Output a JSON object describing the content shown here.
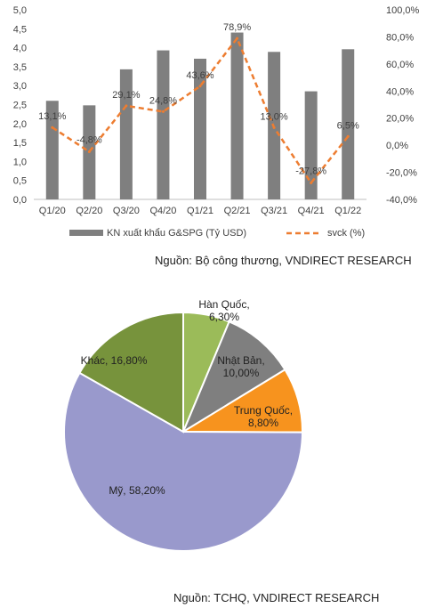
{
  "chart_data": [
    {
      "type": "bar",
      "categories": [
        "Q1/20",
        "Q2/20",
        "Q3/20",
        "Q4/20",
        "Q1/21",
        "Q2/21",
        "Q3/21",
        "Q4/21",
        "Q1/22"
      ],
      "series": [
        {
          "name": "KN xuất khẩu G&SPG (Tỷ USD)",
          "type": "bar",
          "axis": "left",
          "color": "#7f7f7f",
          "values": [
            2.6,
            2.48,
            3.43,
            3.93,
            3.71,
            4.4,
            3.89,
            2.85,
            3.96
          ]
        },
        {
          "name": "svck (%)",
          "type": "line",
          "axis": "right",
          "color": "#ed7d31",
          "dashed": true,
          "values": [
            13.1,
            -4.8,
            29.1,
            24.8,
            43.6,
            78.9,
            13.0,
            -27.8,
            6.5
          ],
          "data_labels": [
            "13,1%",
            "-4,8%",
            "29,1%",
            "24,8%",
            "43,6%",
            "78,9%",
            "13,0%",
            "-27,8%",
            "6,5%"
          ]
        }
      ],
      "y_left": {
        "ylim": [
          0,
          5
        ],
        "ticks": [
          "0,0",
          "0,5",
          "1,0",
          "1,5",
          "2,0",
          "2,5",
          "3,0",
          "3,5",
          "4,0",
          "4,5",
          "5,0"
        ]
      },
      "y_right": {
        "ylim": [
          -40,
          100
        ],
        "ticks": [
          "-40,0%",
          "-20,0%",
          "0,0%",
          "20,0%",
          "40,0%",
          "60,0%",
          "80,0%",
          "100,0%"
        ]
      },
      "legend_position": "bottom",
      "grid": false,
      "source": "Nguồn: Bộ công thương, VNDIRECT RESEARCH"
    },
    {
      "type": "pie",
      "slices": [
        {
          "label": "Hàn Quốc,",
          "value_label": "6,30%",
          "value": 6.3,
          "color": "#9bbb59"
        },
        {
          "label": "Nhật Bản,",
          "value_label": "10,00%",
          "value": 10.0,
          "color": "#7f7f7f"
        },
        {
          "label": "Trung Quốc,",
          "value_label": "8,80%",
          "value": 8.8,
          "color": "#f7931e"
        },
        {
          "label": "Mỹ,",
          "value_label": "58,20%",
          "value": 58.2,
          "color": "#9999cc"
        },
        {
          "label": "Khác,",
          "value_label": "16,80%",
          "value": 16.8,
          "color": "#77933c"
        }
      ],
      "source": "Nguồn: TCHQ, VNDIRECT RESEARCH"
    }
  ]
}
